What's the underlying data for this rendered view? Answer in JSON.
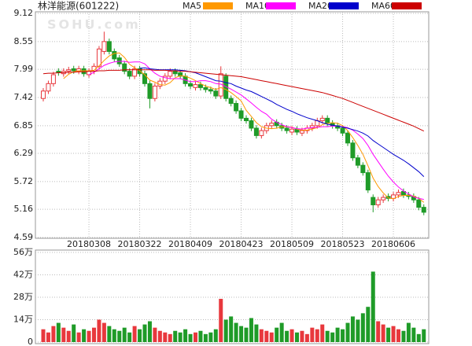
{
  "chart_data": [
    {
      "type": "candlestick",
      "title": "林洋能源(601222)",
      "watermark": "SOHU.com",
      "up_color": "#e8383d",
      "down_color": "#1f9b28",
      "ylim": [
        4.59,
        9.12
      ],
      "yticks": [
        9.12,
        8.55,
        7.99,
        7.42,
        6.85,
        6.29,
        5.72,
        5.16,
        4.59
      ],
      "grid": true,
      "categories": [
        null,
        null,
        null,
        null,
        null,
        null,
        null,
        null,
        null,
        "20180308",
        null,
        null,
        null,
        null,
        null,
        null,
        null,
        null,
        null,
        "20180322",
        null,
        null,
        null,
        null,
        null,
        null,
        null,
        null,
        null,
        "20180409",
        null,
        null,
        null,
        null,
        null,
        null,
        null,
        null,
        null,
        "20180423",
        null,
        null,
        null,
        null,
        null,
        null,
        null,
        null,
        null,
        "20180509",
        null,
        null,
        null,
        null,
        null,
        null,
        null,
        null,
        null,
        "20180523",
        null,
        null,
        null,
        null,
        null,
        null,
        null,
        null,
        null,
        "20180606",
        null,
        null,
        null,
        null,
        null,
        null
      ],
      "open": [
        7.4,
        7.55,
        7.7,
        7.95,
        7.9,
        7.95,
        8.0,
        7.95,
        8.0,
        7.88,
        7.95,
        8.05,
        8.35,
        8.55,
        8.35,
        8.22,
        8.1,
        7.95,
        7.85,
        8.0,
        7.9,
        7.7,
        7.4,
        7.65,
        7.75,
        7.85,
        7.95,
        7.92,
        7.85,
        7.7,
        7.62,
        7.68,
        7.62,
        7.58,
        7.55,
        7.45,
        7.85,
        7.4,
        7.3,
        7.15,
        7.0,
        6.95,
        6.8,
        6.65,
        6.75,
        6.85,
        6.92,
        6.85,
        6.8,
        6.72,
        6.78,
        6.7,
        6.75,
        6.8,
        6.85,
        6.95,
        7.0,
        6.9,
        6.85,
        6.8,
        6.7,
        6.5,
        6.2,
        6.05,
        5.9,
        5.4,
        5.25,
        5.35,
        5.42,
        5.38,
        5.45,
        5.52,
        5.45,
        5.42,
        5.35,
        5.2
      ],
      "high": [
        7.61,
        7.76,
        7.94,
        8.01,
        8.01,
        8.04,
        8.06,
        8.06,
        8.06,
        8.01,
        8.11,
        8.46,
        8.75,
        8.61,
        8.41,
        8.28,
        8.16,
        8.01,
        8.06,
        8.06,
        7.96,
        7.76,
        7.71,
        7.81,
        7.91,
        8.01,
        8.01,
        7.98,
        7.91,
        7.76,
        7.74,
        7.74,
        7.68,
        7.64,
        7.61,
        8.05,
        7.91,
        7.46,
        7.36,
        7.21,
        7.06,
        7.01,
        6.86,
        6.81,
        6.91,
        6.96,
        6.98,
        6.91,
        6.86,
        6.84,
        6.84,
        6.81,
        6.86,
        6.91,
        7.01,
        7.06,
        7.06,
        6.96,
        6.91,
        6.86,
        6.76,
        6.56,
        6.26,
        6.11,
        5.96,
        5.46,
        5.41,
        5.46,
        5.48,
        5.51,
        5.56,
        5.58,
        5.51,
        5.48,
        5.41,
        5.26
      ],
      "low": [
        7.34,
        7.49,
        7.64,
        7.86,
        7.84,
        7.89,
        7.9,
        7.89,
        7.84,
        7.82,
        7.89,
        7.99,
        8.29,
        8.29,
        8.14,
        8.04,
        7.89,
        7.79,
        7.79,
        7.84,
        7.64,
        7.2,
        7.34,
        7.59,
        7.69,
        7.79,
        7.84,
        7.79,
        7.64,
        7.59,
        7.56,
        7.56,
        7.52,
        7.49,
        7.39,
        7.39,
        7.34,
        7.24,
        7.09,
        6.94,
        6.89,
        6.74,
        6.59,
        6.59,
        6.69,
        6.79,
        6.79,
        6.74,
        6.69,
        6.66,
        6.66,
        6.64,
        6.69,
        6.74,
        6.79,
        6.89,
        6.84,
        6.79,
        6.74,
        6.64,
        6.44,
        6.14,
        5.99,
        5.84,
        5.49,
        5.1,
        5.19,
        5.29,
        5.32,
        5.32,
        5.39,
        5.39,
        5.36,
        5.29,
        5.14,
        5.04
      ],
      "close": [
        7.55,
        7.7,
        7.88,
        7.92,
        7.95,
        7.98,
        7.96,
        8.0,
        7.9,
        7.95,
        8.05,
        8.4,
        8.55,
        8.35,
        8.2,
        8.1,
        7.95,
        7.85,
        8.0,
        7.9,
        7.7,
        7.4,
        7.65,
        7.75,
        7.85,
        7.95,
        7.9,
        7.85,
        7.7,
        7.65,
        7.68,
        7.62,
        7.58,
        7.55,
        7.45,
        7.9,
        7.4,
        7.3,
        7.15,
        7.0,
        6.95,
        6.8,
        6.65,
        6.75,
        6.85,
        6.9,
        6.85,
        6.8,
        6.75,
        6.78,
        6.72,
        6.75,
        6.8,
        6.85,
        6.95,
        7.0,
        6.9,
        6.85,
        6.8,
        6.7,
        6.5,
        6.2,
        6.05,
        5.9,
        5.55,
        5.25,
        5.35,
        5.4,
        5.38,
        5.45,
        5.5,
        5.45,
        5.42,
        5.35,
        5.2,
        5.1
      ],
      "series": [
        {
          "name": "MA5",
          "color": "#ff9900",
          "values": [
            null,
            null,
            null,
            null,
            7.8,
            7.89,
            7.94,
            7.96,
            7.96,
            7.96,
            7.97,
            8.06,
            8.17,
            8.26,
            8.31,
            8.32,
            8.23,
            8.09,
            8.02,
            7.96,
            7.88,
            7.77,
            7.73,
            7.68,
            7.67,
            7.72,
            7.82,
            7.86,
            7.85,
            7.81,
            7.76,
            7.7,
            7.65,
            7.62,
            7.58,
            7.62,
            7.58,
            7.52,
            7.44,
            7.35,
            7.16,
            7.04,
            6.91,
            6.83,
            6.8,
            6.79,
            6.8,
            6.83,
            6.83,
            6.82,
            6.78,
            6.76,
            6.76,
            6.78,
            6.81,
            6.87,
            6.9,
            6.91,
            6.9,
            6.85,
            6.75,
            6.61,
            6.45,
            6.27,
            6.04,
            5.79,
            5.62,
            5.49,
            5.39,
            5.37,
            5.42,
            5.44,
            5.44,
            5.43,
            5.38,
            5.3
          ]
        },
        {
          "name": "MA10",
          "color": "#ff00ff",
          "values": [
            null,
            null,
            null,
            null,
            null,
            null,
            null,
            null,
            null,
            7.88,
            7.93,
            8.0,
            8.07,
            8.11,
            8.14,
            8.15,
            8.15,
            8.13,
            8.14,
            8.14,
            8.1,
            8.0,
            7.91,
            7.85,
            7.82,
            7.8,
            7.8,
            7.8,
            7.77,
            7.74,
            7.74,
            7.76,
            7.76,
            7.74,
            7.7,
            7.69,
            7.64,
            7.59,
            7.53,
            7.47,
            7.39,
            7.31,
            7.22,
            7.14,
            7.08,
            6.98,
            6.92,
            6.87,
            6.83,
            6.81,
            6.79,
            6.78,
            6.8,
            6.81,
            6.82,
            6.83,
            6.83,
            6.84,
            6.84,
            6.83,
            6.81,
            6.76,
            6.68,
            6.59,
            6.45,
            6.27,
            6.12,
            5.97,
            5.83,
            5.71,
            5.61,
            5.53,
            5.47,
            5.41,
            5.38,
            5.36
          ]
        },
        {
          "name": "MA20",
          "color": "#0000cc",
          "values": [
            null,
            null,
            null,
            null,
            null,
            null,
            null,
            null,
            null,
            null,
            null,
            null,
            null,
            null,
            null,
            null,
            null,
            null,
            null,
            8.01,
            8.02,
            8.0,
            7.99,
            7.98,
            7.98,
            7.98,
            7.98,
            7.97,
            7.96,
            7.94,
            7.92,
            7.88,
            7.84,
            7.8,
            7.76,
            7.75,
            7.72,
            7.7,
            7.65,
            7.61,
            7.57,
            7.54,
            7.49,
            7.44,
            7.39,
            7.34,
            7.28,
            7.23,
            7.18,
            7.14,
            7.09,
            7.05,
            7.01,
            6.98,
            6.95,
            6.91,
            6.88,
            6.86,
            6.84,
            6.82,
            6.8,
            6.77,
            6.74,
            6.7,
            6.64,
            6.55,
            6.48,
            6.41,
            6.34,
            6.27,
            6.21,
            6.15,
            6.08,
            6.0,
            5.92,
            5.82
          ]
        },
        {
          "name": "MA60",
          "color": "#cc0000",
          "values": [
            7.9,
            7.91,
            7.91,
            7.92,
            7.92,
            7.93,
            7.93,
            7.94,
            7.94,
            7.95,
            7.95,
            7.96,
            7.96,
            7.97,
            7.97,
            7.97,
            7.98,
            7.98,
            7.98,
            7.98,
            7.98,
            7.98,
            7.97,
            7.97,
            7.97,
            7.96,
            7.96,
            7.95,
            7.95,
            7.94,
            7.93,
            7.92,
            7.91,
            7.9,
            7.89,
            7.88,
            7.87,
            7.86,
            7.85,
            7.84,
            7.82,
            7.8,
            7.78,
            7.76,
            7.74,
            7.72,
            7.7,
            7.68,
            7.66,
            7.64,
            7.62,
            7.6,
            7.58,
            7.56,
            7.54,
            7.52,
            7.49,
            7.46,
            7.43,
            7.4,
            7.36,
            7.32,
            7.28,
            7.24,
            7.2,
            7.16,
            7.12,
            7.08,
            7.04,
            7.0,
            6.96,
            6.92,
            6.88,
            6.84,
            6.79,
            6.74
          ]
        }
      ]
    },
    {
      "type": "bar",
      "ylim": [
        0,
        56
      ],
      "yticks": [
        {
          "value": 56,
          "label": "56万"
        },
        {
          "value": 42,
          "label": "42万"
        },
        {
          "value": 28,
          "label": "28万"
        },
        {
          "value": 14,
          "label": "14万"
        },
        0
      ],
      "values": [
        8,
        6,
        10,
        12,
        9,
        7,
        11,
        6,
        8,
        7,
        9,
        14,
        12,
        10,
        8,
        7,
        9,
        6,
        10,
        8,
        11,
        13,
        9,
        7,
        6,
        5,
        7,
        6,
        8,
        5,
        6,
        7,
        5,
        6,
        8,
        27,
        14,
        16,
        12,
        10,
        9,
        15,
        11,
        8,
        7,
        6,
        9,
        12,
        7,
        8,
        6,
        7,
        5,
        9,
        8,
        11,
        7,
        6,
        9,
        8,
        12,
        16,
        14,
        18,
        22,
        44,
        13,
        11,
        9,
        10,
        8,
        7,
        12,
        9,
        5,
        8
      ]
    }
  ]
}
